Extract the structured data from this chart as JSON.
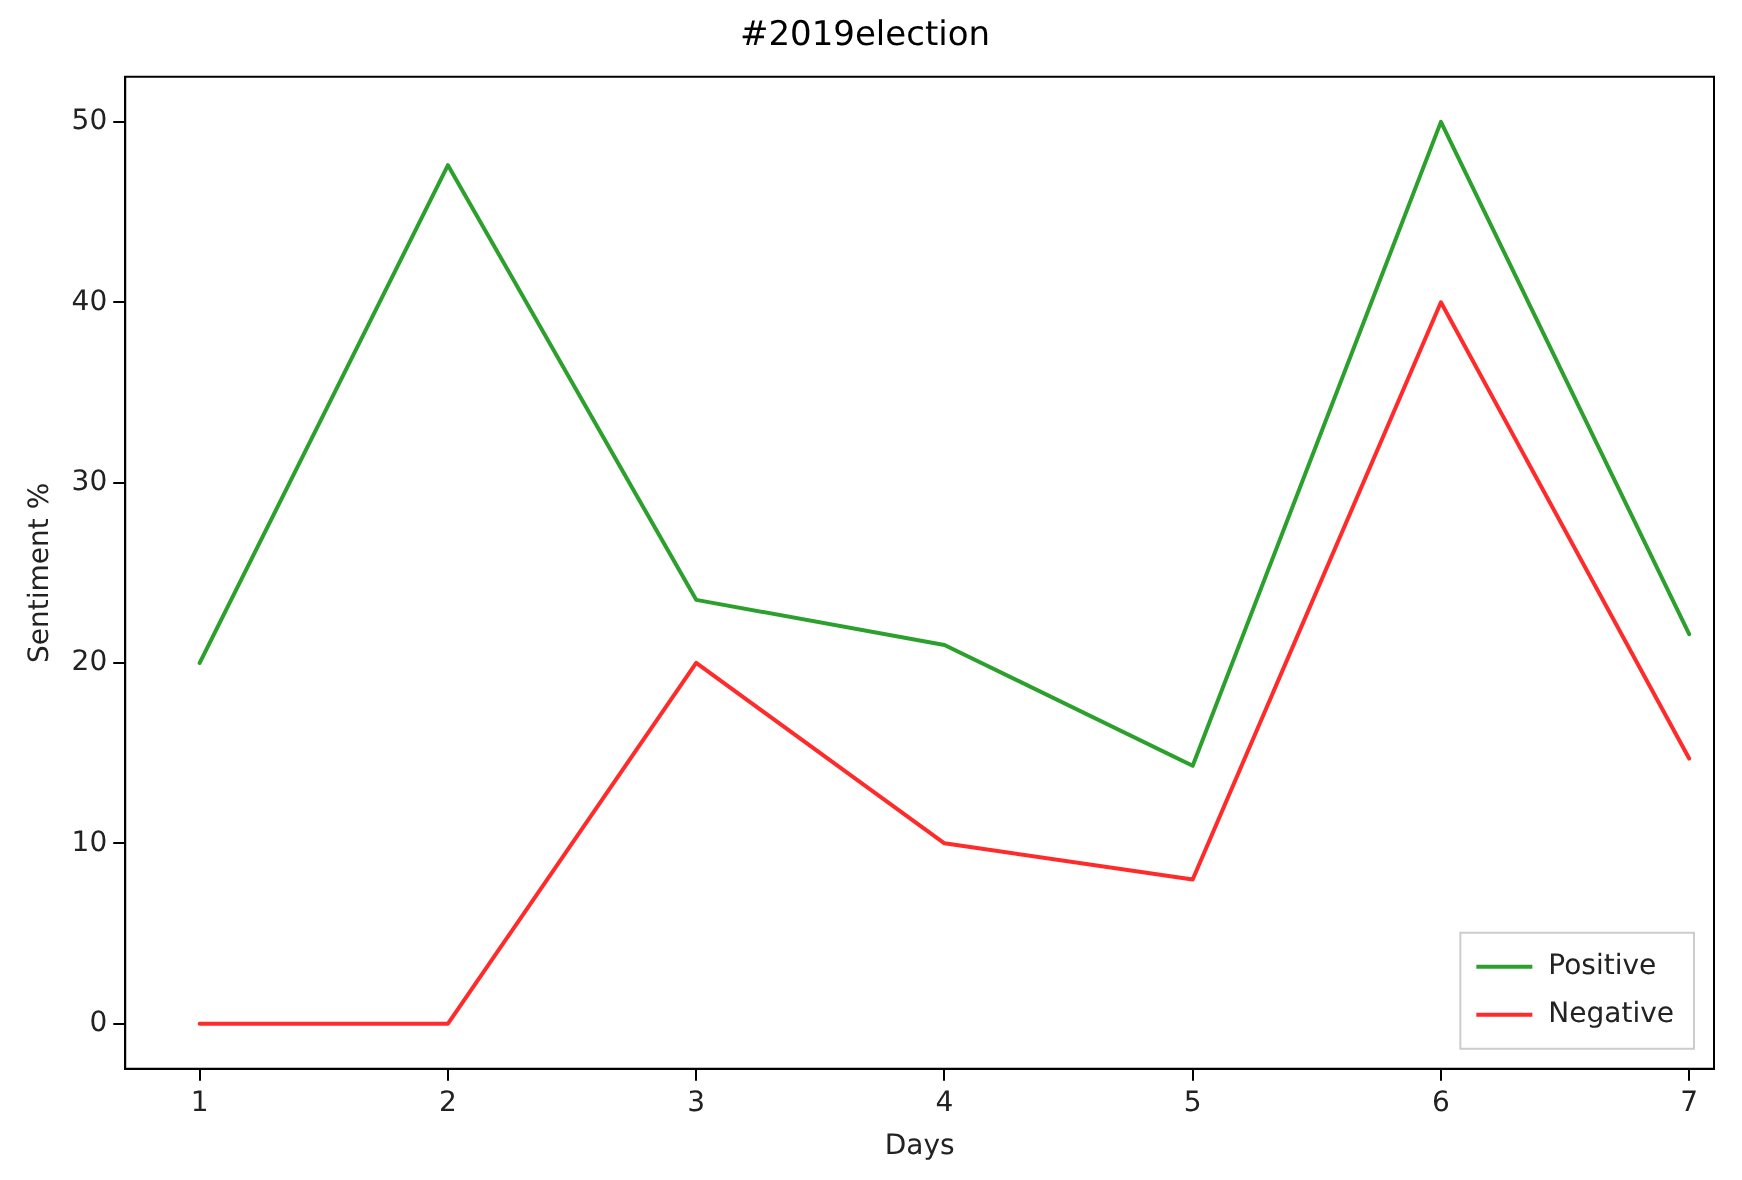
{
  "chart_data": {
    "type": "line",
    "title": "#2019election",
    "xlabel": "Days",
    "ylabel": "Sentiment %",
    "x": [
      1,
      2,
      3,
      4,
      5,
      6,
      7
    ],
    "series": [
      {
        "name": "Positive",
        "color": "#2ca02c",
        "values": [
          20,
          47.6,
          23.5,
          21,
          14.3,
          50,
          21.6
        ]
      },
      {
        "name": "Negative",
        "color": "#ff2a2a",
        "values": [
          0,
          0,
          20,
          10,
          8,
          40,
          14.7
        ]
      }
    ],
    "xlim": [
      0.7,
      7.1
    ],
    "xticks": [
      1,
      2,
      3,
      4,
      5,
      6,
      7
    ],
    "ylim": [
      -2.5,
      52.5
    ],
    "yticks": [
      0,
      10,
      20,
      30,
      40,
      50
    ],
    "grid": false,
    "legend": "bottom right",
    "marker": "none",
    "line_style": "solid"
  }
}
